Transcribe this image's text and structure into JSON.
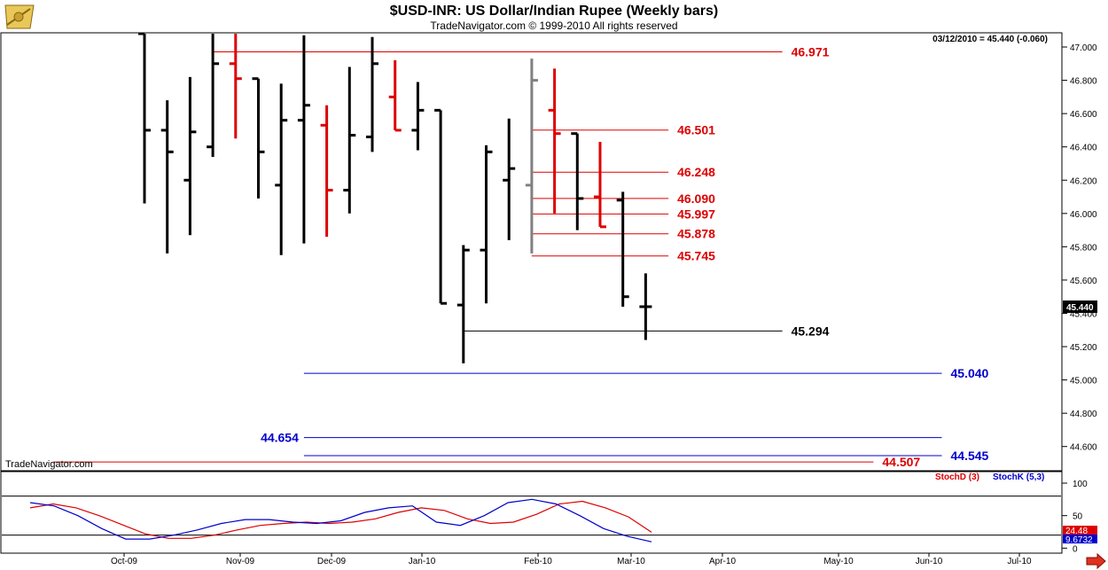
{
  "header": {
    "title": "$USD-INR:  US Dollar/Indian Rupee  (Weekly bars)",
    "subtitle": "TradeNavigator.com © 1999-2010 All rights reserved",
    "readout": "03/12/2010 = 45.440 (-0.060)",
    "watermark": "TradeNavigator.com"
  },
  "colors": {
    "up": "#000000",
    "down": "#dd0000",
    "neutral": "#808080",
    "blue": "#0000cc",
    "red": "#dd0000",
    "black": "#000000"
  },
  "chart_data": [
    {
      "type": "ohlc",
      "name": "price",
      "ylim": [
        44.46,
        47.08
      ],
      "yticks": [
        "47.000",
        "46.800",
        "46.600",
        "46.400",
        "46.200",
        "46.000",
        "45.800",
        "45.600",
        "45.400",
        "45.200",
        "45.000",
        "44.800",
        "44.600"
      ],
      "current_label": "45.440",
      "x_labels": [
        "Oct-09",
        "Nov-09",
        "Dec-09",
        "Jan-10",
        "Feb-10",
        "Mar-10",
        "Apr-10",
        "May-10",
        "Jun-10",
        "Jul-10"
      ],
      "bars": [
        {
          "o": 47.08,
          "h": 47.08,
          "l": 46.06,
          "c": 46.5,
          "d": "up"
        },
        {
          "o": 46.5,
          "h": 46.68,
          "l": 45.76,
          "c": 46.37,
          "d": "up"
        },
        {
          "o": 46.2,
          "h": 46.82,
          "l": 45.87,
          "c": 46.49,
          "d": "up"
        },
        {
          "o": 46.4,
          "h": 47.08,
          "l": 46.34,
          "c": 46.9,
          "d": "up"
        },
        {
          "o": 46.9,
          "h": 47.08,
          "l": 46.45,
          "c": 46.81,
          "d": "down"
        },
        {
          "o": 46.81,
          "h": 46.81,
          "l": 46.09,
          "c": 46.37,
          "d": "up"
        },
        {
          "o": 46.17,
          "h": 46.78,
          "l": 45.75,
          "c": 46.56,
          "d": "up"
        },
        {
          "o": 46.56,
          "h": 47.07,
          "l": 45.82,
          "c": 46.65,
          "d": "up"
        },
        {
          "o": 46.53,
          "h": 46.65,
          "l": 45.86,
          "c": 46.14,
          "d": "down"
        },
        {
          "o": 46.14,
          "h": 46.88,
          "l": 46.0,
          "c": 46.47,
          "d": "up"
        },
        {
          "o": 46.46,
          "h": 47.06,
          "l": 46.37,
          "c": 46.9,
          "d": "up"
        },
        {
          "o": 46.7,
          "h": 46.92,
          "l": 46.5,
          "c": 46.5,
          "d": "down"
        },
        {
          "o": 46.5,
          "h": 46.79,
          "l": 46.38,
          "c": 46.62,
          "d": "up"
        },
        {
          "o": 46.62,
          "h": 46.62,
          "l": 45.46,
          "c": 45.46,
          "d": "up"
        },
        {
          "o": 45.45,
          "h": 45.81,
          "l": 45.1,
          "c": 45.78,
          "d": "up"
        },
        {
          "o": 45.78,
          "h": 46.41,
          "l": 45.46,
          "c": 46.37,
          "d": "up"
        },
        {
          "o": 46.2,
          "h": 46.57,
          "l": 45.84,
          "c": 46.27,
          "d": "up"
        },
        {
          "o": 46.17,
          "h": 46.93,
          "l": 45.76,
          "c": 46.8,
          "d": "neutral"
        },
        {
          "o": 46.62,
          "h": 46.87,
          "l": 46.0,
          "c": 46.48,
          "d": "down"
        },
        {
          "o": 46.48,
          "h": 46.48,
          "l": 45.9,
          "c": 46.09,
          "d": "up"
        },
        {
          "o": 46.1,
          "h": 46.43,
          "l": 45.92,
          "c": 45.92,
          "d": "down"
        },
        {
          "o": 46.08,
          "h": 46.13,
          "l": 45.44,
          "c": 45.5,
          "d": "up"
        },
        {
          "o": 45.44,
          "h": 45.64,
          "l": 45.24,
          "c": 45.44,
          "d": "up"
        }
      ],
      "levels": [
        {
          "value": 46.971,
          "label": "46.971",
          "color": "red",
          "from": 3,
          "to": 28,
          "label_pos": "right"
        },
        {
          "value": 46.501,
          "label": "46.501",
          "color": "red",
          "from": 17,
          "to": 23,
          "label_pos": "right"
        },
        {
          "value": 46.248,
          "label": "46.248",
          "color": "red",
          "from": 17,
          "to": 23,
          "label_pos": "right"
        },
        {
          "value": 46.09,
          "label": "46.090",
          "color": "red",
          "from": 17,
          "to": 23,
          "label_pos": "right"
        },
        {
          "value": 45.997,
          "label": "45.997",
          "color": "red",
          "from": 17,
          "to": 23,
          "label_pos": "right"
        },
        {
          "value": 45.878,
          "label": "45.878",
          "color": "red",
          "from": 17,
          "to": 23,
          "label_pos": "right"
        },
        {
          "value": 45.745,
          "label": "45.745",
          "color": "red",
          "from": 17,
          "to": 23,
          "label_pos": "right"
        },
        {
          "value": 45.294,
          "label": "45.294",
          "color": "black",
          "from": 14,
          "to": 28,
          "label_pos": "right"
        },
        {
          "value": 45.04,
          "label": "45.040",
          "color": "blue",
          "from": 7,
          "to": 35,
          "label_pos": "right"
        },
        {
          "value": 44.654,
          "label": "44.654",
          "color": "blue",
          "from": 7,
          "to": 35,
          "label_pos": "left"
        },
        {
          "value": 44.545,
          "label": "44.545",
          "color": "blue",
          "from": 7,
          "to": 35,
          "label_pos": "right"
        },
        {
          "value": 44.507,
          "label": "44.507",
          "color": "red",
          "from": -4,
          "to": 32,
          "label_pos": "right"
        }
      ]
    },
    {
      "type": "line",
      "name": "stochastic",
      "ylim": [
        -5,
        115
      ],
      "yticks": [
        "100",
        "50",
        "0"
      ],
      "ref_lines": [
        80,
        20
      ],
      "legend": [
        {
          "label": "StochD (3)",
          "color": "red"
        },
        {
          "label": "StochK (5,3)",
          "color": "blue"
        }
      ],
      "readouts": [
        {
          "label": "24.48",
          "color": "red",
          "value": 24.48
        },
        {
          "label": "9.6732",
          "color": "blue",
          "value": 9.67
        }
      ],
      "series": [
        {
          "color": "red",
          "values": [
            62,
            68,
            62,
            50,
            36,
            22,
            15,
            15,
            20,
            28,
            35,
            38,
            40,
            38,
            40,
            45,
            55,
            62,
            58,
            45,
            38,
            40,
            52,
            68,
            72,
            62,
            48,
            24.48
          ]
        },
        {
          "color": "blue",
          "values": [
            70,
            65,
            50,
            30,
            14,
            14,
            20,
            28,
            38,
            44,
            44,
            40,
            38,
            42,
            55,
            62,
            65,
            40,
            35,
            50,
            70,
            75,
            68,
            50,
            30,
            18,
            9.67
          ]
        }
      ]
    }
  ]
}
